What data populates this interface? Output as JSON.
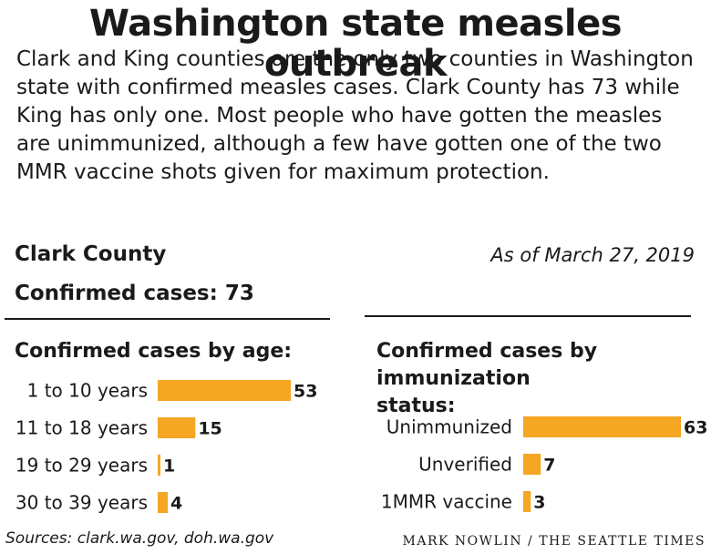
{
  "header": {
    "title": "Washington state measles outbreak",
    "intro": "Clark and King counties are the only two counties in Washington state with confirmed measles cases. Clark County has 73 while King has only one.  Most people who have gotten the measles are unimmunized, although a few have gotten one of the two MMR vaccine shots given for maximum protection."
  },
  "summary": {
    "county": "Clark County",
    "as_of": "As of March 27, 2019",
    "confirmed": "Confirmed cases: 73"
  },
  "footer": {
    "source": "Sources: clark.wa.gov, doh.wa.gov",
    "credit": "MARK NOWLIN / THE SEATTLE TIMES"
  },
  "colors": {
    "bar": "#f5a623"
  },
  "chart_data": [
    {
      "type": "bar",
      "orientation": "horizontal",
      "title": "Confirmed cases by age:",
      "categories": [
        "1 to 10 years",
        "11 to 18 years",
        "19 to 29 years",
        "30 to 39 years"
      ],
      "values": [
        53,
        15,
        1,
        4
      ]
    },
    {
      "type": "bar",
      "orientation": "horizontal",
      "title": "Confirmed cases by immunization status:",
      "categories": [
        "Unimmunized",
        "Unverified",
        "1MMR vaccine"
      ],
      "values": [
        63,
        7,
        3
      ]
    }
  ]
}
